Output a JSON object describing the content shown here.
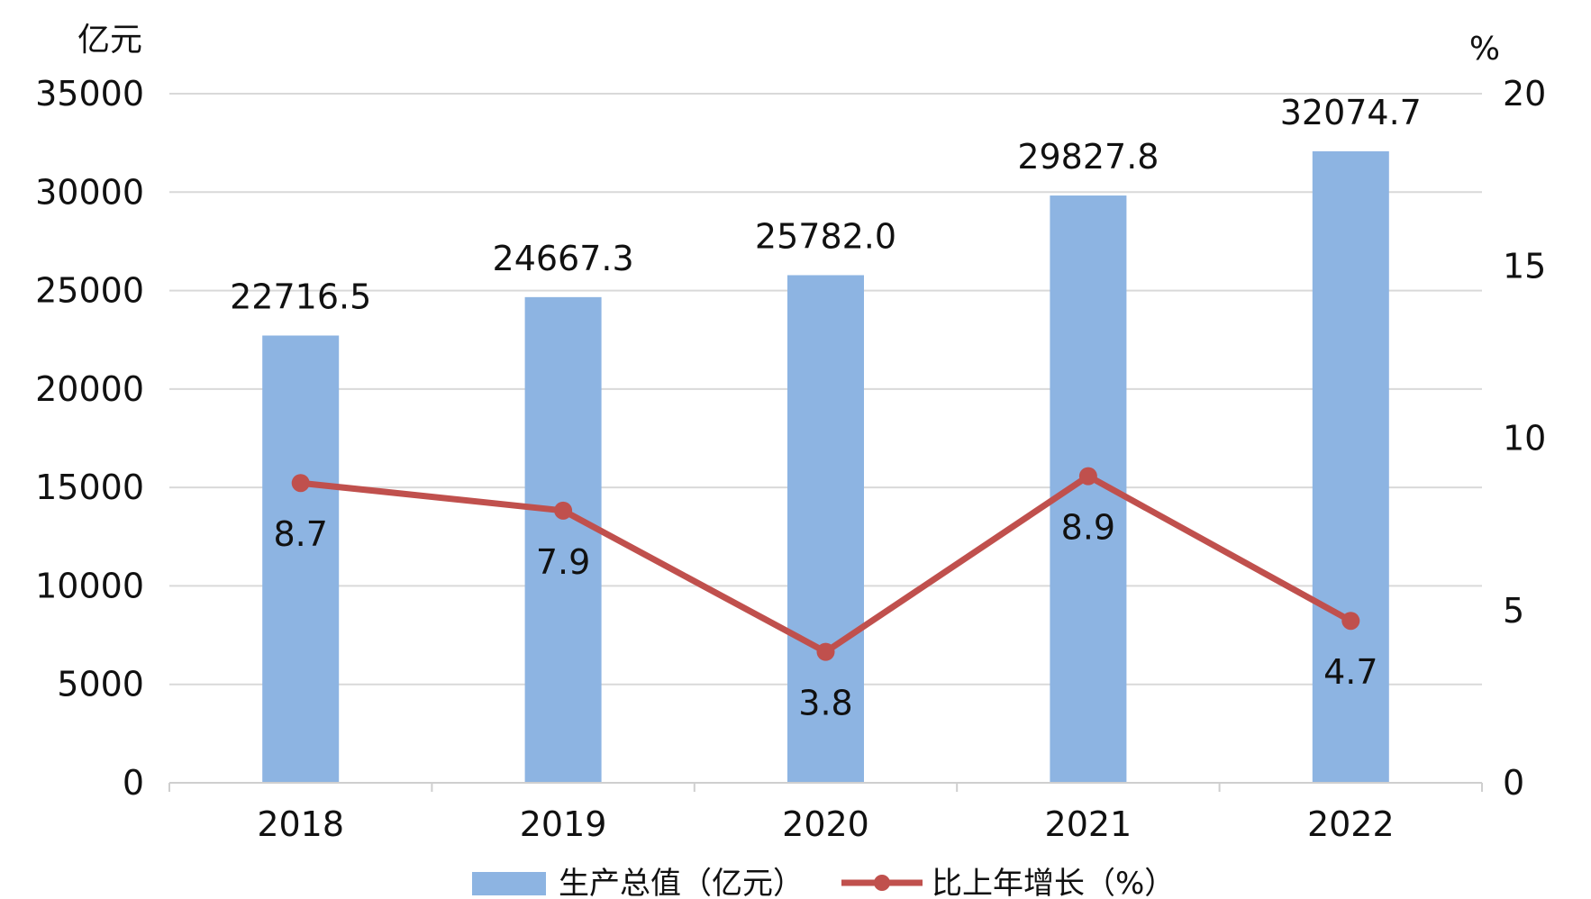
{
  "chart_data": {
    "type": "bar",
    "categories": [
      "2018",
      "2019",
      "2020",
      "2021",
      "2022"
    ],
    "series": [
      {
        "name": "生产总值（亿元）",
        "type": "bar",
        "axis": "left",
        "values": [
          22716.5,
          24667.3,
          25782.0,
          29827.8,
          32074.7
        ],
        "labels": [
          "22716.5",
          "24667.3",
          "25782.0",
          "29827.8",
          "32074.7"
        ],
        "color": "#8DB4E2"
      },
      {
        "name": "比上年增长（%）",
        "type": "line",
        "axis": "right",
        "values": [
          8.7,
          7.9,
          3.8,
          8.9,
          4.7
        ],
        "labels": [
          "8.7",
          "7.9",
          "3.8",
          "8.9",
          "4.7"
        ],
        "color": "#C0504D"
      }
    ],
    "left_axis": {
      "unit": "亿元",
      "ylim": [
        0,
        35000
      ],
      "ticks": [
        0,
        5000,
        10000,
        15000,
        20000,
        25000,
        30000,
        35000
      ]
    },
    "right_axis": {
      "unit": "%",
      "ylim": [
        0,
        20
      ],
      "ticks": [
        0,
        5,
        10,
        15,
        20
      ]
    },
    "grid": true,
    "legend_position": "bottom"
  }
}
